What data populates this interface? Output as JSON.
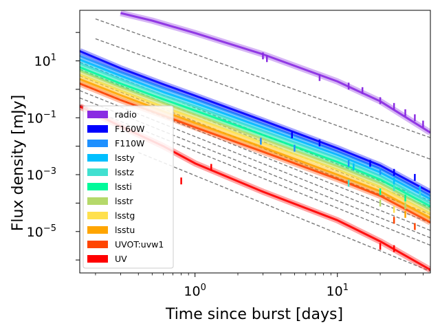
{
  "chart_data": {
    "type": "line",
    "title": "",
    "xlabel": "Time since burst [days]",
    "ylabel": "Flux density [mJy]",
    "xscale": "log",
    "yscale": "log",
    "xlim": [
      0.155,
      45
    ],
    "ylim": [
      3.5e-07,
      600
    ],
    "x_ticks": [
      {
        "value": 1,
        "label": "10",
        "exp": "0"
      },
      {
        "value": 10,
        "label": "10",
        "exp": "1"
      }
    ],
    "y_ticks": [
      {
        "value": 1e-05,
        "label": "10",
        "exp": "−5"
      },
      {
        "value": 0.001,
        "label": "10",
        "exp": "−3"
      },
      {
        "value": 0.1,
        "label": "10",
        "exp": "−1"
      },
      {
        "value": 10,
        "label": "10",
        "exp": "1"
      }
    ],
    "grid": false,
    "legend_position": "lower-left",
    "legend": [
      "radio",
      "F160W",
      "F110W",
      "lssty",
      "lsstz",
      "lssti",
      "lsstr",
      "lsstg",
      "lsstu",
      "UVOT:uvw1",
      "UV"
    ],
    "series": [
      {
        "name": "radio",
        "color": "#8a2be2",
        "model": [
          [
            0.3,
            480
          ],
          [
            0.5,
            260
          ],
          [
            1,
            95
          ],
          [
            3,
            17
          ],
          [
            10,
            1.9
          ],
          [
            20,
            0.38
          ],
          [
            45,
            0.03
          ]
        ],
        "data": [
          [
            3.0,
            15
          ],
          [
            3.2,
            12
          ],
          [
            7.5,
            2.6
          ],
          [
            12,
            1.3
          ],
          [
            15,
            0.9
          ],
          [
            20,
            0.4
          ],
          [
            25,
            0.25
          ],
          [
            30,
            0.15
          ],
          [
            35,
            0.1
          ],
          [
            40,
            0.06
          ]
        ]
      },
      {
        "name": "F160W",
        "color": "#0000ff",
        "model": [
          [
            0.155,
            22
          ],
          [
            0.3,
            5.5
          ],
          [
            0.6,
            1.5
          ],
          [
            1,
            0.6
          ],
          [
            3,
            0.08
          ],
          [
            10,
            0.0085
          ],
          [
            20,
            0.0021
          ],
          [
            45,
            0.00024
          ]
        ],
        "data": [
          [
            4.8,
            0.025
          ],
          [
            7.5,
            0.013
          ],
          [
            17,
            0.0025
          ],
          [
            25,
            0.0012
          ],
          [
            35,
            0.0008
          ]
        ]
      },
      {
        "name": "F110W",
        "color": "#1e90ff",
        "model": [
          [
            0.155,
            15
          ],
          [
            0.3,
            4.0
          ],
          [
            0.6,
            1.1
          ],
          [
            1,
            0.45
          ],
          [
            3,
            0.06
          ],
          [
            10,
            0.0065
          ],
          [
            20,
            0.0016
          ],
          [
            45,
            0.00018
          ]
        ],
        "data": [
          [
            2.9,
            0.015
          ],
          [
            5.0,
            0.0085
          ],
          [
            12,
            0.0025
          ],
          [
            20,
            0.0013
          ]
        ]
      },
      {
        "name": "lssty",
        "color": "#00bfff",
        "model": [
          [
            0.155,
            11
          ],
          [
            0.3,
            3.0
          ],
          [
            0.6,
            0.8
          ],
          [
            1,
            0.33
          ],
          [
            3,
            0.045
          ],
          [
            10,
            0.005
          ],
          [
            20,
            0.0012
          ],
          [
            45,
            0.00014
          ]
        ],
        "data": [
          [
            13,
            0.0019
          ],
          [
            25,
            0.0006
          ],
          [
            38,
            0.0003
          ]
        ]
      },
      {
        "name": "lsstz",
        "color": "#40e0d0",
        "model": [
          [
            0.155,
            8
          ],
          [
            0.3,
            2.2
          ],
          [
            0.6,
            0.6
          ],
          [
            1,
            0.25
          ],
          [
            3,
            0.034
          ],
          [
            10,
            0.0038
          ],
          [
            20,
            0.0009
          ],
          [
            45,
            0.0001
          ]
        ],
        "data": [
          [
            12,
            0.0005
          ],
          [
            25,
            0.00035
          ],
          [
            38,
            0.0002
          ]
        ]
      },
      {
        "name": "lssti",
        "color": "#00fa9a",
        "model": [
          [
            0.155,
            6
          ],
          [
            0.3,
            1.6
          ],
          [
            0.6,
            0.45
          ],
          [
            1,
            0.18
          ],
          [
            3,
            0.025
          ],
          [
            10,
            0.0028
          ],
          [
            20,
            0.00068
          ],
          [
            45,
            7.8e-05
          ]
        ],
        "data": [
          [
            20,
            0.00025
          ],
          [
            30,
            0.00015
          ]
        ]
      },
      {
        "name": "lsstr",
        "color": "#b5d96a",
        "model": [
          [
            0.155,
            4.5
          ],
          [
            0.3,
            1.2
          ],
          [
            0.6,
            0.33
          ],
          [
            1,
            0.13
          ],
          [
            3,
            0.018
          ],
          [
            10,
            0.002
          ],
          [
            20,
            0.0005
          ],
          [
            45,
            5.8e-05
          ]
        ],
        "data": [
          [
            20,
            0.0001
          ],
          [
            30,
            8e-05
          ]
        ]
      },
      {
        "name": "lsstg",
        "color": "#ffe04d",
        "model": [
          [
            0.155,
            3.3
          ],
          [
            0.3,
            0.9
          ],
          [
            0.6,
            0.24
          ],
          [
            1,
            0.095
          ],
          [
            3,
            0.013
          ],
          [
            10,
            0.0015
          ],
          [
            20,
            0.00037
          ],
          [
            45,
            4.3e-05
          ]
        ],
        "data": [
          [
            25,
            6e-05
          ]
        ]
      },
      {
        "name": "lsstu",
        "color": "#ffa500",
        "model": [
          [
            0.155,
            2.3
          ],
          [
            0.3,
            0.62
          ],
          [
            0.6,
            0.17
          ],
          [
            1,
            0.066
          ],
          [
            3,
            0.0092
          ],
          [
            10,
            0.001
          ],
          [
            20,
            0.00026
          ],
          [
            45,
            3e-05
          ]
        ],
        "data": [
          [
            30,
            4e-05
          ]
        ]
      },
      {
        "name": "UVOT:uvw1",
        "color": "#ff4500",
        "model": [
          [
            0.155,
            1.6
          ],
          [
            0.3,
            0.42
          ],
          [
            0.6,
            0.12
          ],
          [
            1,
            0.046
          ],
          [
            3,
            0.0064
          ],
          [
            10,
            0.0007
          ],
          [
            20,
            0.00018
          ],
          [
            45,
            2.1e-05
          ]
        ],
        "data": [
          [
            25,
            2.5e-05
          ],
          [
            35,
            1.5e-05
          ]
        ]
      },
      {
        "name": "UV",
        "color": "#ff0000",
        "model": [
          [
            0.155,
            0.25
          ],
          [
            0.3,
            0.05
          ],
          [
            0.6,
            0.01
          ],
          [
            1,
            0.0025
          ],
          [
            3,
            0.00025
          ],
          [
            10,
            2.5e-05
          ],
          [
            20,
            4.5e-06
          ],
          [
            45,
            4.5e-07
          ]
        ],
        "data": [
          [
            0.8,
            0.0006
          ],
          [
            1.3,
            0.0018
          ],
          [
            20,
            3e-06
          ],
          [
            25,
            2.5e-06
          ]
        ]
      }
    ],
    "reference_lines": [
      {
        "points": [
          [
            0.2,
            300
          ],
          [
            45,
            0.02
          ]
        ]
      },
      {
        "points": [
          [
            0.2,
            60
          ],
          [
            45,
            0.0035
          ]
        ]
      },
      {
        "points": [
          [
            0.155,
            9
          ],
          [
            45,
            0.00012
          ]
        ]
      },
      {
        "points": [
          [
            0.155,
            5
          ],
          [
            45,
            7e-05
          ]
        ]
      },
      {
        "points": [
          [
            0.155,
            3
          ],
          [
            45,
            4e-05
          ]
        ]
      },
      {
        "points": [
          [
            0.155,
            1.6
          ],
          [
            45,
            2e-05
          ]
        ]
      },
      {
        "points": [
          [
            0.155,
            0.9
          ],
          [
            45,
            1.1e-05
          ]
        ]
      },
      {
        "points": [
          [
            0.155,
            0.5
          ],
          [
            45,
            6e-06
          ]
        ]
      },
      {
        "points": [
          [
            0.155,
            0.28
          ],
          [
            45,
            3.3e-06
          ]
        ]
      },
      {
        "points": [
          [
            0.4,
            0.006
          ],
          [
            45,
            4e-07
          ]
        ]
      }
    ]
  }
}
